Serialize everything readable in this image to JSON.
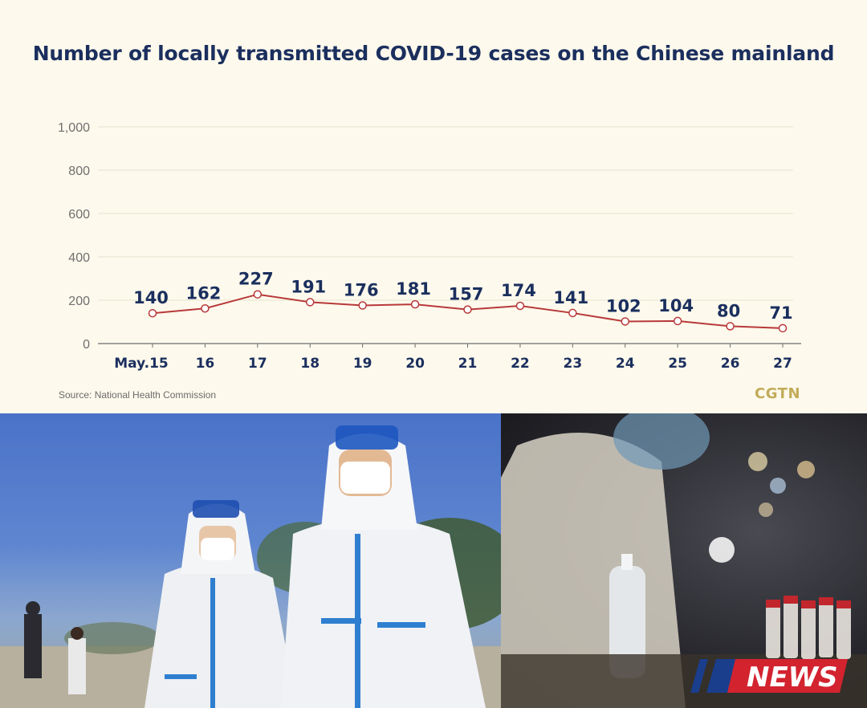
{
  "header": {
    "title": "Number of locally transmitted COVID-19 cases on the Chinese mainland"
  },
  "footer": {
    "source": "Source: National Health Commission",
    "brand": "CGTN"
  },
  "chart_data": {
    "type": "line",
    "title": "Number of locally transmitted COVID-19 cases on the Chinese mainland",
    "categories": [
      "May.15",
      "16",
      "17",
      "18",
      "19",
      "20",
      "21",
      "22",
      "23",
      "24",
      "25",
      "26",
      "27"
    ],
    "series": [
      {
        "values": [
          140,
          162,
          227,
          191,
          176,
          181,
          157,
          174,
          141,
          102,
          104,
          80,
          71
        ],
        "color": "#b8393a"
      }
    ],
    "yticks": [
      "0",
      "200",
      "400",
      "600",
      "800",
      "1,000"
    ],
    "ylim": [
      0,
      1000
    ],
    "grid": true,
    "data_labels": true
  },
  "photos": {
    "left": "two health workers in white protective suits and face shields",
    "right": "blurred night scene with sample tubes and hand sanitizer bottle"
  },
  "logo": {
    "text": "NEWS",
    "primary_color": "#d3232f",
    "secondary_color": "#1a3e8c"
  }
}
